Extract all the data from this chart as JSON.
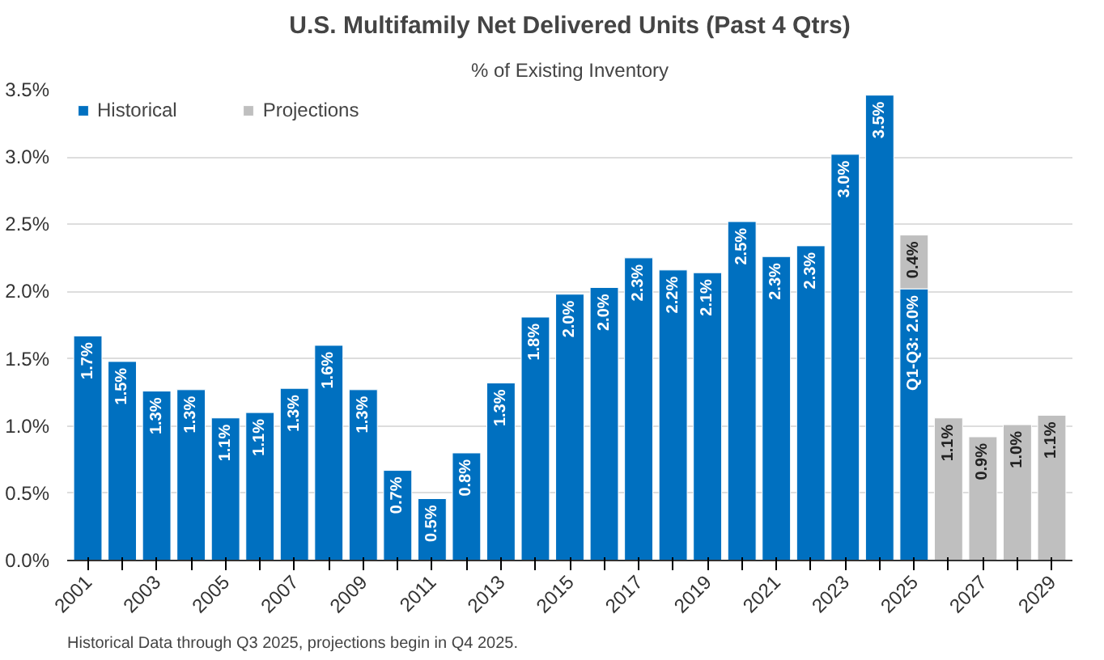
{
  "chart_data": {
    "type": "bar",
    "title": "U.S. Multifamily Net Delivered Units (Past 4 Qtrs)",
    "subtitle": "% of Existing Inventory",
    "categories": [
      "2001",
      null,
      "2003",
      null,
      "2005",
      null,
      "2007",
      null,
      "2009",
      null,
      "2011",
      null,
      "2013",
      null,
      "2015",
      null,
      "2017",
      null,
      "2019",
      null,
      "2021",
      null,
      "2023",
      null,
      "2025",
      null,
      "2027",
      null,
      "2029"
    ],
    "stacked": true,
    "series": [
      {
        "name": "Historical",
        "color": "#0070c0",
        "values": [
          1.67,
          1.48,
          1.26,
          1.27,
          1.06,
          1.1,
          1.28,
          1.6,
          1.27,
          0.67,
          0.46,
          0.8,
          1.32,
          1.81,
          1.98,
          2.03,
          2.25,
          2.16,
          2.14,
          2.52,
          2.26,
          2.34,
          3.02,
          3.46,
          2.02,
          null,
          null,
          null,
          null
        ],
        "value_labels": [
          "1.7%",
          "1.5%",
          "1.3%",
          "1.3%",
          "1.1%",
          "1.1%",
          "1.3%",
          "1.6%",
          "1.3%",
          "0.7%",
          "0.5%",
          "0.8%",
          "1.3%",
          "1.8%",
          "2.0%",
          "2.0%",
          "2.3%",
          "2.2%",
          "2.1%",
          "2.5%",
          "2.3%",
          "2.3%",
          "3.0%",
          "3.5%",
          "Q1-Q3: 2.0%",
          null,
          null,
          null,
          null
        ]
      },
      {
        "name": "Projections",
        "color": "#bfbfbf",
        "values": [
          null,
          null,
          null,
          null,
          null,
          null,
          null,
          null,
          null,
          null,
          null,
          null,
          null,
          null,
          null,
          null,
          null,
          null,
          null,
          null,
          null,
          null,
          null,
          null,
          0.4,
          1.06,
          0.92,
          1.01,
          1.08
        ],
        "value_labels": [
          null,
          null,
          null,
          null,
          null,
          null,
          null,
          null,
          null,
          null,
          null,
          null,
          null,
          null,
          null,
          null,
          null,
          null,
          null,
          null,
          null,
          null,
          null,
          null,
          "0.4%",
          "1.1%",
          "0.9%",
          "1.0%",
          "1.1%"
        ]
      }
    ],
    "ylim": [
      0,
      3.5
    ],
    "yticks": [
      {
        "value": 0,
        "label": "0.0%"
      },
      {
        "value": 0.5,
        "label": "0.5%"
      },
      {
        "value": 1,
        "label": "1.0%"
      },
      {
        "value": 1.5,
        "label": "1.5%"
      },
      {
        "value": 2,
        "label": "2.0%"
      },
      {
        "value": 2.5,
        "label": "2.5%"
      },
      {
        "value": 3,
        "label": "3.0%"
      },
      {
        "value": 3.5,
        "label": "3.5%"
      }
    ],
    "grid": "y",
    "legend": "top left",
    "annotations": [
      "Historical Data through Q3 2025, projections begin in Q4 2025."
    ]
  }
}
